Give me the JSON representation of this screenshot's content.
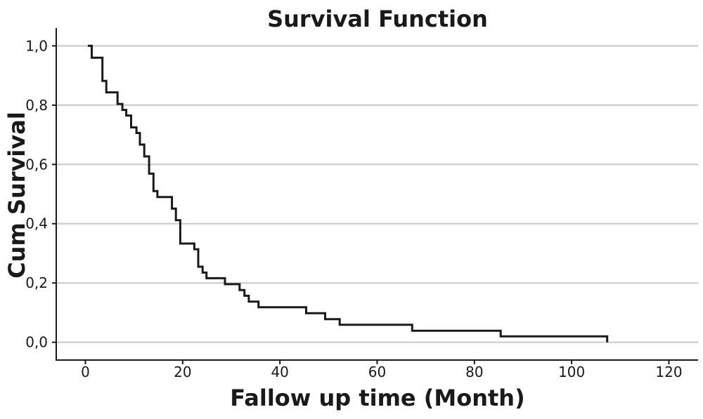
{
  "chart_data": {
    "type": "line",
    "step": true,
    "title": "Survival Function",
    "xlabel": "Fallow up time (Month)",
    "ylabel": "Cum Survival",
    "xlim": [
      -6,
      126
    ],
    "ylim": [
      -0.06,
      1.06
    ],
    "xticks": [
      {
        "value": 0,
        "label": "0"
      },
      {
        "value": 20,
        "label": "20"
      },
      {
        "value": 40,
        "label": "40"
      },
      {
        "value": 60,
        "label": "60"
      },
      {
        "value": 80,
        "label": "80"
      },
      {
        "value": 100,
        "label": "100"
      },
      {
        "value": 120,
        "label": "120"
      }
    ],
    "yticks": [
      {
        "value": 0.0,
        "label": "0,0"
      },
      {
        "value": 0.2,
        "label": "0,2"
      },
      {
        "value": 0.4,
        "label": "0,4"
      },
      {
        "value": 0.6,
        "label": "0,6"
      },
      {
        "value": 0.8,
        "label": "0,8"
      },
      {
        "value": 1.0,
        "label": "1,0"
      }
    ],
    "grid": "horizontal",
    "line_color": "#1a1a1a",
    "grid_color": "#c8c8c8",
    "series": [
      {
        "x": [
          0.5,
          1.3,
          3.5,
          4.3,
          6.6,
          7.6,
          8.4,
          9.4,
          10.5,
          11.2,
          12.1,
          13.1,
          14.0,
          14.8,
          15.8,
          17.8,
          18.6,
          19.5,
          20.8,
          22.4,
          23.2,
          24.1,
          24.9,
          28.7,
          31.7,
          32.7,
          33.6,
          35.6,
          45.4,
          49.3,
          52.3,
          67.2,
          85.4,
          107.3
        ],
        "y": [
          1.0,
          0.96,
          0.882,
          0.843,
          0.804,
          0.784,
          0.765,
          0.725,
          0.706,
          0.667,
          0.627,
          0.569,
          0.51,
          0.49,
          0.49,
          0.451,
          0.412,
          0.333,
          0.333,
          0.314,
          0.255,
          0.235,
          0.216,
          0.196,
          0.176,
          0.157,
          0.137,
          0.118,
          0.098,
          0.078,
          0.059,
          0.039,
          0.02,
          0.0
        ]
      }
    ]
  }
}
